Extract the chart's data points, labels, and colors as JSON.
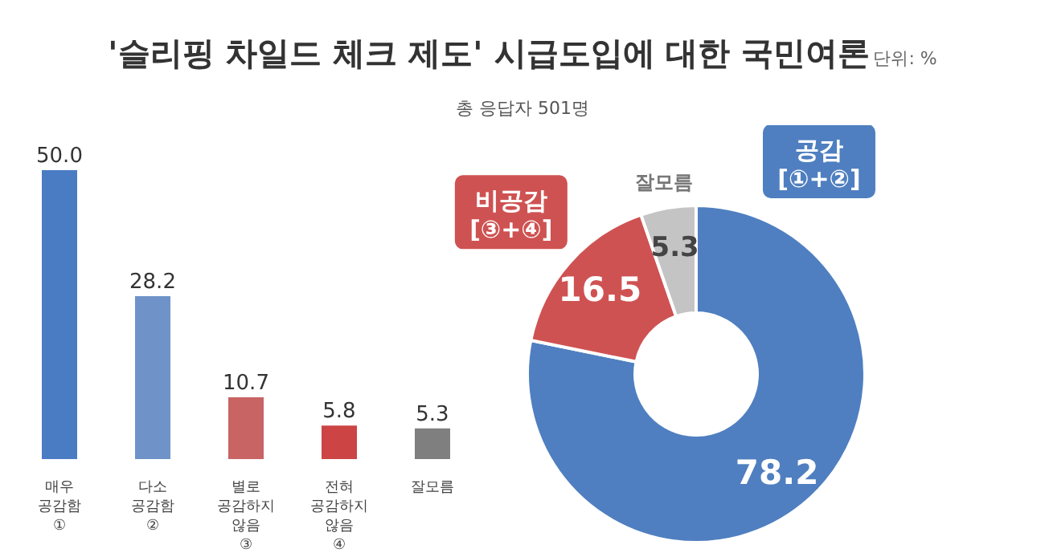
{
  "chart_data": [
    {
      "type": "bar",
      "title": "'슬리핑 차일드 체크 제도' 시급도입에 대한 국민여론",
      "subtitle": "총 응답자 501명",
      "annotations": [
        "단위: %"
      ],
      "categories": [
        "매우 공감함 ①",
        "다소 공감함 ②",
        "별로 공감하지 않음 ③",
        "전혀 공감하지 않음 ④",
        "잘모름"
      ],
      "values": [
        50.0,
        28.2,
        10.7,
        5.8,
        5.3
      ],
      "colors": [
        "#4a7cc4",
        "#6f93c8",
        "#c86464",
        "#cc4444",
        "#7f7f7f"
      ],
      "value_labels": [
        "50.0",
        "28.2",
        "10.7",
        "5.8",
        "5.3"
      ],
      "grid": false,
      "legend": false
    },
    {
      "type": "donut",
      "categories": [
        "공감 [①+②]",
        "비공감 [③+④]",
        "잘모름"
      ],
      "values": [
        78.2,
        16.5,
        5.3
      ],
      "colors": [
        "#4f7fc0",
        "#cf5252",
        "#c4c4c4"
      ],
      "data_labels": true,
      "legend": false
    }
  ]
}
